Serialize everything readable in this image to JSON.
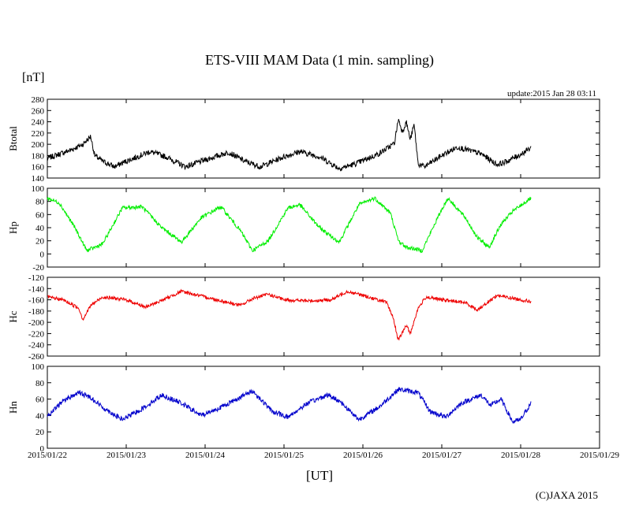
{
  "page": {
    "title": "ETS-VIII MAM Data (1 min. sampling)",
    "unit_label": "[nT]",
    "update": "update:2015 Jan 28 03:11",
    "x_unit_label": "[UT]",
    "copyright": "(C)JAXA 2015"
  },
  "chart_data": {
    "type": "line",
    "x_ticks": [
      "2015/01/22",
      "2015/01/23",
      "2015/01/24",
      "2015/01/25",
      "2015/01/26",
      "2015/01/27",
      "2015/01/28",
      "2015/01/29"
    ],
    "x_range_days": [
      0,
      7
    ],
    "data_end_day": 6.13,
    "panels": [
      {
        "name": "Btotal",
        "ylabel": "Btotal",
        "color": "#000000",
        "ylim": [
          140,
          280
        ],
        "yticks": [
          "280",
          "260",
          "240",
          "220",
          "200",
          "180",
          "160",
          "140"
        ],
        "x": [
          0,
          0.3,
          0.45,
          0.55,
          0.6,
          0.7,
          0.85,
          1.0,
          1.3,
          1.5,
          1.75,
          2.0,
          2.3,
          2.5,
          2.7,
          3.0,
          3.2,
          3.45,
          3.7,
          3.9,
          4.2,
          4.3,
          4.4,
          4.45,
          4.5,
          4.55,
          4.6,
          4.65,
          4.7,
          4.78,
          5.0,
          5.2,
          5.5,
          5.7,
          5.8,
          6.0,
          6.13
        ],
        "y": [
          175,
          190,
          200,
          214,
          180,
          170,
          160,
          170,
          187,
          178,
          160,
          172,
          186,
          170,
          160,
          178,
          187,
          178,
          157,
          165,
          183,
          192,
          202,
          245,
          222,
          240,
          208,
          235,
          165,
          160,
          180,
          195,
          183,
          164,
          168,
          182,
          194
        ],
        "noise": 5
      },
      {
        "name": "Hp",
        "ylabel": "Hp",
        "color": "#00ee00",
        "ylim": [
          -20,
          100
        ],
        "yticks": [
          "100",
          "80",
          "60",
          "40",
          "20",
          "0",
          "-20"
        ],
        "x": [
          0,
          0.15,
          0.35,
          0.5,
          0.7,
          0.95,
          1.2,
          1.45,
          1.7,
          1.95,
          2.2,
          2.45,
          2.6,
          2.8,
          3.05,
          3.2,
          3.45,
          3.7,
          3.95,
          4.15,
          4.35,
          4.45,
          4.55,
          4.65,
          4.75,
          5.0,
          5.08,
          5.3,
          5.45,
          5.6,
          5.75,
          5.9,
          6.13
        ],
        "y": [
          85,
          78,
          40,
          5,
          15,
          70,
          72,
          40,
          18,
          55,
          72,
          35,
          5,
          20,
          70,
          75,
          40,
          18,
          75,
          85,
          62,
          20,
          10,
          8,
          5,
          68,
          85,
          55,
          25,
          10,
          45,
          65,
          85
        ],
        "noise": 3
      },
      {
        "name": "Hc",
        "ylabel": "Hc",
        "color": "#ee0000",
        "ylim": [
          -260,
          -120
        ],
        "yticks": [
          "-120",
          "-140",
          "-160",
          "-180",
          "-200",
          "-220",
          "-240",
          "-260"
        ],
        "x": [
          0,
          0.2,
          0.4,
          0.45,
          0.55,
          0.7,
          1.0,
          1.25,
          1.5,
          1.7,
          2.0,
          2.45,
          2.6,
          2.8,
          3.0,
          3.3,
          3.6,
          3.8,
          4.0,
          4.3,
          4.38,
          4.45,
          4.55,
          4.6,
          4.7,
          4.8,
          5.0,
          5.3,
          5.45,
          5.7,
          6.0,
          6.13
        ],
        "y": [
          -155,
          -160,
          -175,
          -195,
          -170,
          -155,
          -160,
          -173,
          -158,
          -145,
          -155,
          -170,
          -158,
          -150,
          -160,
          -162,
          -160,
          -145,
          -152,
          -165,
          -190,
          -232,
          -205,
          -220,
          -175,
          -155,
          -160,
          -165,
          -178,
          -152,
          -160,
          -163
        ],
        "noise": 3
      },
      {
        "name": "Hn",
        "ylabel": "Hn",
        "color": "#0000cc",
        "ylim": [
          0,
          100
        ],
        "yticks": [
          "100",
          "80",
          "60",
          "40",
          "20",
          "0"
        ],
        "x": [
          0,
          0.2,
          0.4,
          0.55,
          0.7,
          0.95,
          1.2,
          1.45,
          1.7,
          1.95,
          2.2,
          2.5,
          2.6,
          2.85,
          3.05,
          3.3,
          3.55,
          3.7,
          3.95,
          4.2,
          4.45,
          4.7,
          4.85,
          5.05,
          5.25,
          5.5,
          5.62,
          5.75,
          5.9,
          6.0,
          6.13
        ],
        "y": [
          38,
          58,
          68,
          62,
          50,
          35,
          48,
          65,
          55,
          40,
          50,
          65,
          70,
          45,
          38,
          55,
          65,
          58,
          35,
          50,
          72,
          68,
          45,
          38,
          55,
          65,
          52,
          60,
          32,
          35,
          55
        ],
        "noise": 3
      }
    ]
  }
}
